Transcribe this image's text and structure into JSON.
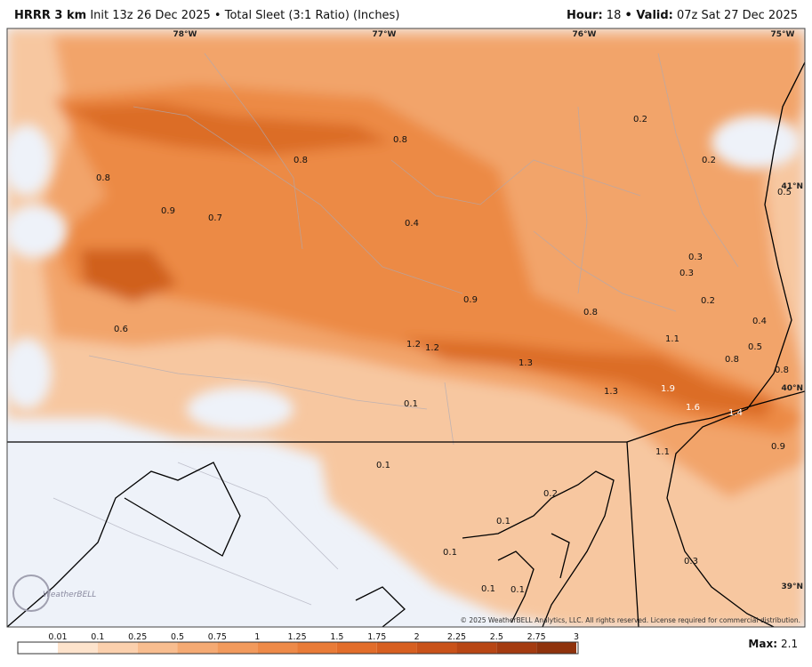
{
  "header": {
    "model": "HRRR 3 km",
    "description": "Init 13z 26 Dec 2025 • Total Sleet (3:1 Ratio) (Inches)",
    "hour_label": "Hour:",
    "hour": 18,
    "valid_label": "• Valid:",
    "valid": "07z Sat 27 Dec 2025"
  },
  "map": {
    "longitude_labels": [
      "78°W",
      "77°W",
      "76°W",
      "75°W"
    ],
    "latitude_labels": [
      "41°N",
      "40°N",
      "39°N"
    ],
    "point_labels": [
      0.8,
      0.8,
      0.8,
      0.9,
      0.7,
      0.4,
      0.2,
      0.2,
      0.5,
      0.3,
      0.3,
      0.2,
      0.9,
      0.8,
      0.4,
      1.1,
      0.5,
      0.6,
      1.2,
      1.2,
      1.3,
      0.8,
      0.8,
      1.3,
      1.9,
      1.6,
      1.4,
      0.1,
      0.9,
      1.1,
      0.1,
      0.2,
      0.1,
      0.1,
      0.3,
      0.1,
      0.1
    ],
    "logo": "WeatherBELL",
    "copyright": "© 2025 WeatherBELL Analytics, LLC. All rights reserved. License required for commercial distribution."
  },
  "legend": {
    "ticks": [
      0.01,
      0.1,
      0.25,
      0.5,
      0.75,
      1,
      1.25,
      1.5,
      1.75,
      2,
      2.25,
      2.5,
      2.75,
      3
    ],
    "max_label": "Max:",
    "max": 2.1
  }
}
